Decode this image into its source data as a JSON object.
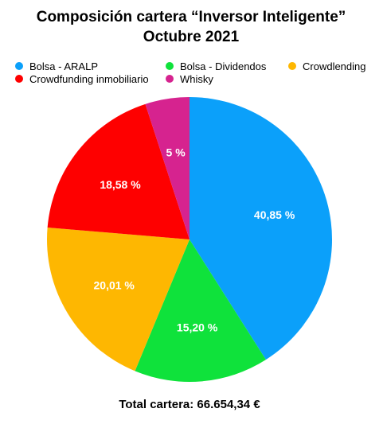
{
  "chart_data": {
    "type": "pie",
    "title": "Composición cartera “Inversor Inteligente”",
    "subtitle": "Octubre 2021",
    "series": [
      {
        "name": "Bolsa - ARALP",
        "value": 40.85,
        "label": "40,85 %",
        "color": "#0ba0fa"
      },
      {
        "name": "Bolsa - Dividendos",
        "value": 15.2,
        "label": "15,20 %",
        "color": "#0fe23b"
      },
      {
        "name": "Crowdlending",
        "value": 20.01,
        "label": "20,01 %",
        "color": "#feb701"
      },
      {
        "name": "Crowdfunding inmobiliario",
        "value": 18.58,
        "label": "18,58 %",
        "color": "#fe0000"
      },
      {
        "name": "Whisky",
        "value": 5.0,
        "label": "5 %",
        "color": "#d6238f"
      }
    ],
    "slice_order": [
      0,
      1,
      2,
      3,
      4
    ],
    "start_angle_deg": 0,
    "direction": "clockwise",
    "legend_position": "top",
    "footer": "Total cartera: 66.654,34 €"
  }
}
